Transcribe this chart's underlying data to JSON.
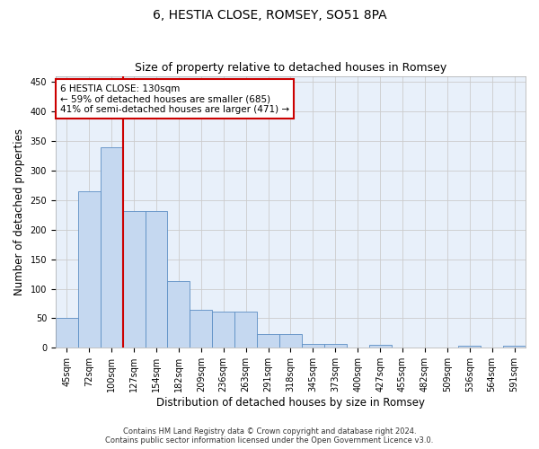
{
  "title": "6, HESTIA CLOSE, ROMSEY, SO51 8PA",
  "subtitle": "Size of property relative to detached houses in Romsey",
  "xlabel": "Distribution of detached houses by size in Romsey",
  "ylabel": "Number of detached properties",
  "categories": [
    "45sqm",
    "72sqm",
    "100sqm",
    "127sqm",
    "154sqm",
    "182sqm",
    "209sqm",
    "236sqm",
    "263sqm",
    "291sqm",
    "318sqm",
    "345sqm",
    "373sqm",
    "400sqm",
    "427sqm",
    "455sqm",
    "482sqm",
    "509sqm",
    "536sqm",
    "564sqm",
    "591sqm"
  ],
  "values": [
    50,
    265,
    340,
    232,
    232,
    113,
    65,
    62,
    62,
    24,
    24,
    7,
    7,
    0,
    5,
    0,
    0,
    0,
    3,
    0,
    3
  ],
  "bar_color": "#c5d8f0",
  "bar_edge_color": "#5b8ec4",
  "vline_x": 2.5,
  "vline_color": "#cc0000",
  "annotation_line1": "6 HESTIA CLOSE: 130sqm",
  "annotation_line2": "← 59% of detached houses are smaller (685)",
  "annotation_line3": "41% of semi-detached houses are larger (471) →",
  "annotation_box_color": "#ffffff",
  "annotation_box_edge": "#cc0000",
  "ylim": [
    0,
    460
  ],
  "yticks": [
    0,
    50,
    100,
    150,
    200,
    250,
    300,
    350,
    400,
    450
  ],
  "grid_color": "#cccccc",
  "background_color": "#e8f0fa",
  "footer1": "Contains HM Land Registry data © Crown copyright and database right 2024.",
  "footer2": "Contains public sector information licensed under the Open Government Licence v3.0.",
  "title_fontsize": 10,
  "subtitle_fontsize": 9,
  "xlabel_fontsize": 8.5,
  "ylabel_fontsize": 8.5,
  "tick_fontsize": 7,
  "annotation_fontsize": 7.5,
  "footer_fontsize": 6
}
